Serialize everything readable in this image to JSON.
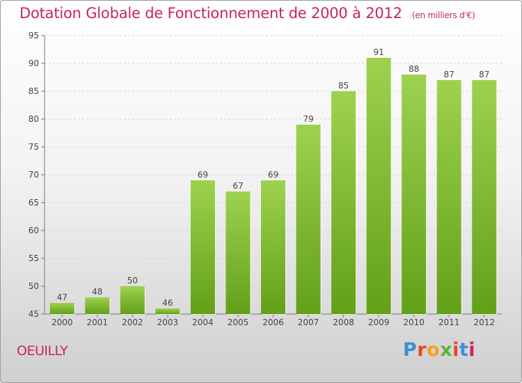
{
  "title": "Dotation Globale de Fonctionnement de 2000 à 2012",
  "unit_note": "(en milliers d'€)",
  "commune": "OEUILLY",
  "logo": {
    "text": "Proxiti",
    "colors": [
      "#3b8fd6",
      "#e8452c",
      "#f3a21b",
      "#5ab534",
      "#e8452c",
      "#3b8fd6",
      "#c8255c"
    ]
  },
  "chart_data": {
    "type": "bar",
    "categories": [
      "2000",
      "2001",
      "2002",
      "2003",
      "2004",
      "2005",
      "2006",
      "2007",
      "2008",
      "2009",
      "2010",
      "2011",
      "2012"
    ],
    "values": [
      47,
      48,
      50,
      46,
      69,
      67,
      69,
      79,
      85,
      91,
      88,
      87,
      87
    ],
    "ylim": [
      45,
      95
    ],
    "yticks": [
      45,
      50,
      55,
      60,
      65,
      70,
      75,
      80,
      85,
      90,
      95
    ],
    "grid": true,
    "bar_color_top": "#9ed24e",
    "bar_color_bottom": "#62a018"
  }
}
